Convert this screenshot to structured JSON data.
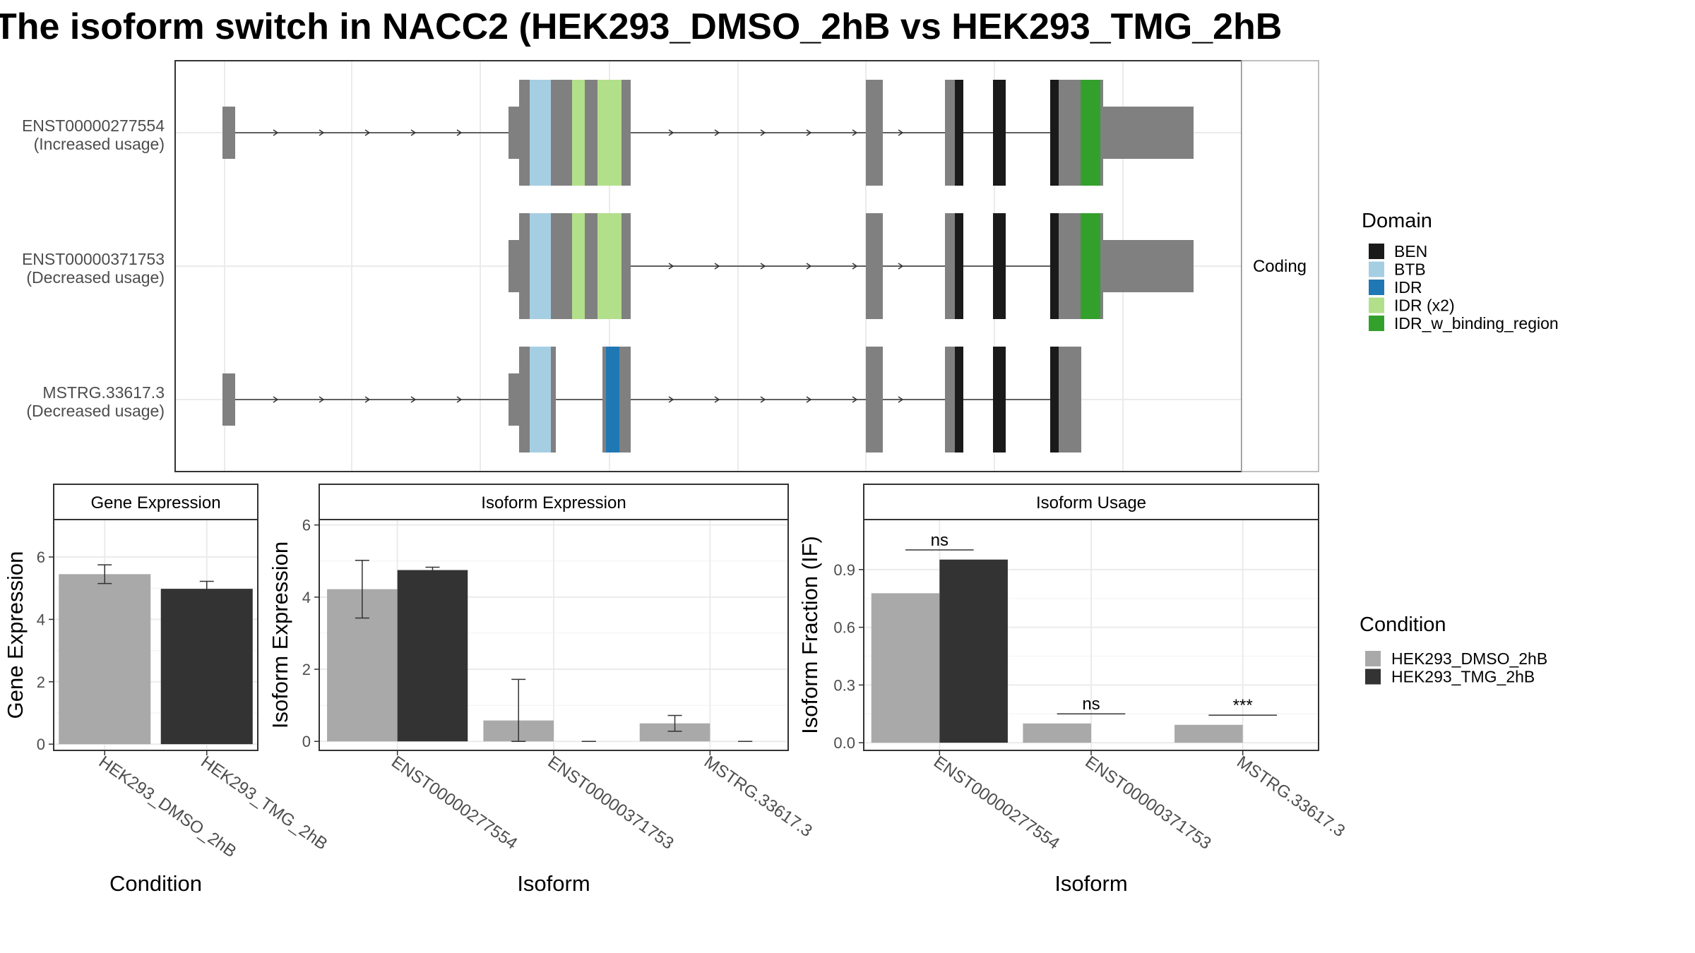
{
  "title": "The isoform switch in NACC2 (HEK293_DMSO_2hB vs HEK293_TMG_2hB",
  "transcripts": [
    {
      "id": "ENST00000277554",
      "usage": "(Increased usage)"
    },
    {
      "id": "ENST00000371753",
      "usage": "(Decreased usage)"
    },
    {
      "id": "MSTRG.33617.3",
      "usage": "(Decreased usage)"
    }
  ],
  "facet_label": "Coding",
  "domain_legend": {
    "title": "Domain",
    "entries": [
      {
        "label": "BEN",
        "color": "#1a1a1a"
      },
      {
        "label": "BTB",
        "color": "#a6cee3"
      },
      {
        "label": "IDR",
        "color": "#1f78b4"
      },
      {
        "label": "IDR (x2)",
        "color": "#b2df8a"
      },
      {
        "label": "IDR_w_binding_region",
        "color": "#33a02c"
      }
    ]
  },
  "condition_legend": {
    "title": "Condition",
    "entries": [
      {
        "label": "HEK293_DMSO_2hB",
        "color": "#a9a9a9"
      },
      {
        "label": "HEK293_TMG_2hB",
        "color": "#333333"
      }
    ]
  },
  "chart_data": [
    {
      "type": "bar",
      "title": "Gene Expression",
      "xlabel": "Condition",
      "ylabel": "Gene Expression",
      "categories": [
        "HEK293_DMSO_2hB",
        "HEK293_TMG_2hB"
      ],
      "values": [
        5.45,
        4.98
      ],
      "errors": [
        [
          5.15,
          5.75
        ],
        [
          4.75,
          5.22
        ]
      ],
      "colors": [
        "#a9a9a9",
        "#333333"
      ],
      "ylim": [
        -0.2,
        7.2
      ],
      "yticks": [
        0,
        2,
        4,
        6
      ],
      "grid": true
    },
    {
      "type": "bar",
      "title": "Isoform Expression",
      "xlabel": "Isoform",
      "ylabel": "Isoform Expression",
      "categories": [
        "ENST00000277554",
        "ENST00000371753",
        "MSTRG.33617.3"
      ],
      "series": [
        {
          "name": "HEK293_DMSO_2hB",
          "values": [
            4.22,
            0.58,
            0.5
          ],
          "errors": [
            [
              3.42,
              5.02
            ],
            [
              0.0,
              1.72
            ],
            [
              0.28,
              0.72
            ]
          ]
        },
        {
          "name": "HEK293_TMG_2hB",
          "values": [
            4.75,
            0.0,
            0.0
          ],
          "errors": [
            [
              4.68,
              4.83
            ],
            [
              0.0,
              0.0
            ],
            [
              0.0,
              0.0
            ]
          ]
        }
      ],
      "ylim": [
        -0.25,
        6.15
      ],
      "yticks": [
        0,
        2,
        4,
        6
      ],
      "grid": true
    },
    {
      "type": "bar",
      "title": "Isoform Usage",
      "xlabel": "Isoform",
      "ylabel": "Isoform Fraction (IF)",
      "categories": [
        "ENST00000277554",
        "ENST00000371753",
        "MSTRG.33617.3"
      ],
      "series": [
        {
          "name": "HEK293_DMSO_2hB",
          "values": [
            0.777,
            0.1,
            0.093
          ]
        },
        {
          "name": "HEK293_TMG_2hB",
          "values": [
            0.952,
            0.0,
            0.0
          ]
        }
      ],
      "significance": [
        "ns",
        "ns",
        "***"
      ],
      "ylim": [
        -0.04,
        1.16
      ],
      "yticks": [
        0.0,
        0.3,
        0.6,
        0.9
      ],
      "grid": true
    }
  ]
}
